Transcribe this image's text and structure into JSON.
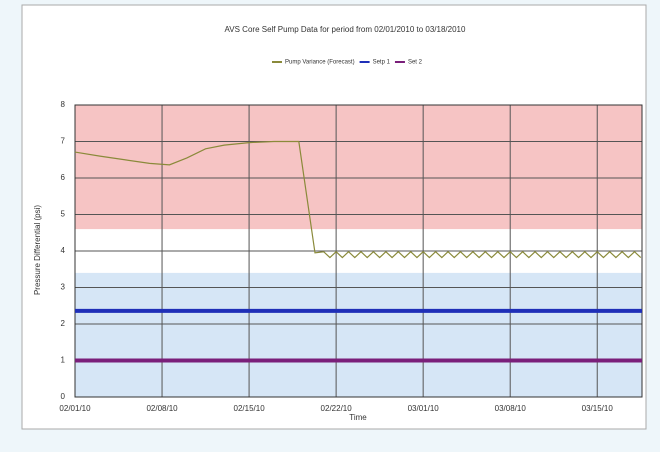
{
  "chart_data": {
    "type": "line",
    "title": "AVS Core Self Pump Data for period from 02/01/2010 to 03/18/2010",
    "x_label": "Time",
    "y_label": "Pressure Differential (psi)",
    "xlim": [
      0,
      45.6
    ],
    "xticks": [
      {
        "value": 0,
        "label": "02/01/10"
      },
      {
        "value": 7,
        "label": "02/08/10"
      },
      {
        "value": 14,
        "label": "02/15/10"
      },
      {
        "value": 21,
        "label": "02/22/10"
      },
      {
        "value": 28,
        "label": "03/01/10"
      },
      {
        "value": 35,
        "label": "03/08/10"
      },
      {
        "value": 42,
        "label": "03/15/10"
      }
    ],
    "ylim": [
      0,
      8
    ],
    "yticks": [
      0,
      1,
      2,
      3,
      4,
      5,
      6,
      7,
      8
    ],
    "grid": true,
    "bands": [
      {
        "from": 4.6,
        "to": 8,
        "color": "#f6c4c4"
      },
      {
        "from": 0,
        "to": 3.4,
        "color": "#d6e6f6"
      }
    ],
    "series": [
      {
        "name": "Pump Variance (Forecast)",
        "color": "#8a8a3a",
        "x": [
          0,
          2,
          4,
          6,
          7.6,
          9,
          10.5,
          12,
          14,
          16,
          18,
          19.3,
          20,
          20.5,
          21,
          21.5,
          22,
          22.5,
          23,
          23.5,
          24,
          24.5,
          25,
          25.5,
          26,
          26.5,
          27,
          27.5,
          28,
          28.5,
          29,
          29.5,
          30,
          30.5,
          31,
          31.5,
          32,
          32.5,
          33,
          33.5,
          34,
          34.5,
          35,
          35.5,
          36,
          36.5,
          37,
          37.5,
          38,
          38.5,
          39,
          39.5,
          40,
          40.5,
          41,
          41.5,
          42,
          42.5,
          43,
          43.5,
          44,
          44.5,
          45,
          45.5
        ],
        "values": [
          6.71,
          6.6,
          6.5,
          6.4,
          6.36,
          6.55,
          6.8,
          6.9,
          6.97,
          7.0,
          7.0,
          3.95,
          3.98,
          3.82,
          3.98,
          3.82,
          3.98,
          3.82,
          3.98,
          3.82,
          3.98,
          3.82,
          3.98,
          3.82,
          3.98,
          3.82,
          3.98,
          3.82,
          3.98,
          3.82,
          3.98,
          3.82,
          3.98,
          3.82,
          3.98,
          3.82,
          3.98,
          3.82,
          3.98,
          3.82,
          3.98,
          3.82,
          3.98,
          3.82,
          3.98,
          3.82,
          3.98,
          3.82,
          3.98,
          3.82,
          3.98,
          3.82,
          3.98,
          3.82,
          3.98,
          3.82,
          3.98,
          3.82,
          3.98,
          3.82,
          3.98,
          3.82,
          3.98,
          3.82
        ]
      },
      {
        "name": "Setp 1",
        "color": "#1f2fb8",
        "x": [
          0,
          45.6
        ],
        "values": [
          2.36,
          2.36
        ]
      },
      {
        "name": "Set 2",
        "color": "#7a1f7a",
        "x": [
          0,
          45.6
        ],
        "values": [
          1.0,
          1.0
        ]
      }
    ]
  }
}
